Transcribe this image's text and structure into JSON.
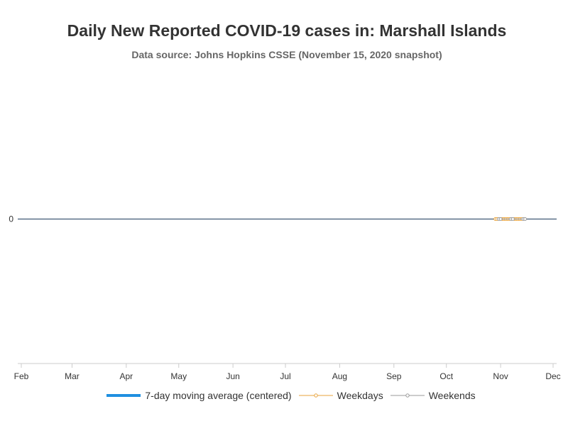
{
  "chart_data": {
    "type": "line",
    "title": "Daily New Reported COVID-19 cases in: Marshall Islands",
    "subtitle": "Data source: Johns Hopkins CSSE (November 15, 2020 snapshot)",
    "xlabel": "",
    "ylabel": "",
    "x_range": [
      "2020-02-01",
      "2020-12-01"
    ],
    "x_tick_labels": [
      "Feb",
      "Mar",
      "Apr",
      "May",
      "Jun",
      "Jul",
      "Aug",
      "Sep",
      "Oct",
      "Nov",
      "Dec"
    ],
    "x_tick_dates": [
      "2020-02-01",
      "2020-03-01",
      "2020-04-01",
      "2020-05-01",
      "2020-06-01",
      "2020-07-01",
      "2020-08-01",
      "2020-09-01",
      "2020-10-01",
      "2020-11-01",
      "2020-12-01"
    ],
    "y_tick_labels": [
      "0"
    ],
    "ylim": [
      -1,
      1
    ],
    "grid": true,
    "legend_position": "bottom-center",
    "series": [
      {
        "name": "7-day moving average (centered)",
        "color": "#1f8fe0",
        "points": [
          [
            "2020-10-29",
            0
          ],
          [
            "2020-10-30",
            0
          ],
          [
            "2020-10-31",
            0
          ],
          [
            "2020-11-01",
            0
          ],
          [
            "2020-11-02",
            0
          ],
          [
            "2020-11-03",
            0
          ],
          [
            "2020-11-04",
            0
          ],
          [
            "2020-11-05",
            0
          ],
          [
            "2020-11-06",
            0
          ],
          [
            "2020-11-07",
            0
          ],
          [
            "2020-11-08",
            0
          ],
          [
            "2020-11-09",
            0
          ],
          [
            "2020-11-10",
            0
          ],
          [
            "2020-11-11",
            0
          ],
          [
            "2020-11-12",
            0
          ]
        ]
      },
      {
        "name": "Weekdays",
        "color": "#e8a33c",
        "points": [
          [
            "2020-10-29",
            0
          ],
          [
            "2020-10-30",
            0
          ],
          [
            "2020-11-02",
            0
          ],
          [
            "2020-11-03",
            0
          ],
          [
            "2020-11-04",
            0
          ],
          [
            "2020-11-05",
            0
          ],
          [
            "2020-11-06",
            0
          ],
          [
            "2020-11-09",
            0
          ],
          [
            "2020-11-10",
            0
          ],
          [
            "2020-11-11",
            0
          ],
          [
            "2020-11-12",
            0
          ],
          [
            "2020-11-13",
            0
          ]
        ]
      },
      {
        "name": "Weekends",
        "color": "#999999",
        "points": [
          [
            "2020-10-31",
            0
          ],
          [
            "2020-11-01",
            0
          ],
          [
            "2020-11-07",
            0
          ],
          [
            "2020-11-08",
            0
          ],
          [
            "2020-11-14",
            0
          ],
          [
            "2020-11-15",
            0
          ]
        ]
      }
    ]
  }
}
